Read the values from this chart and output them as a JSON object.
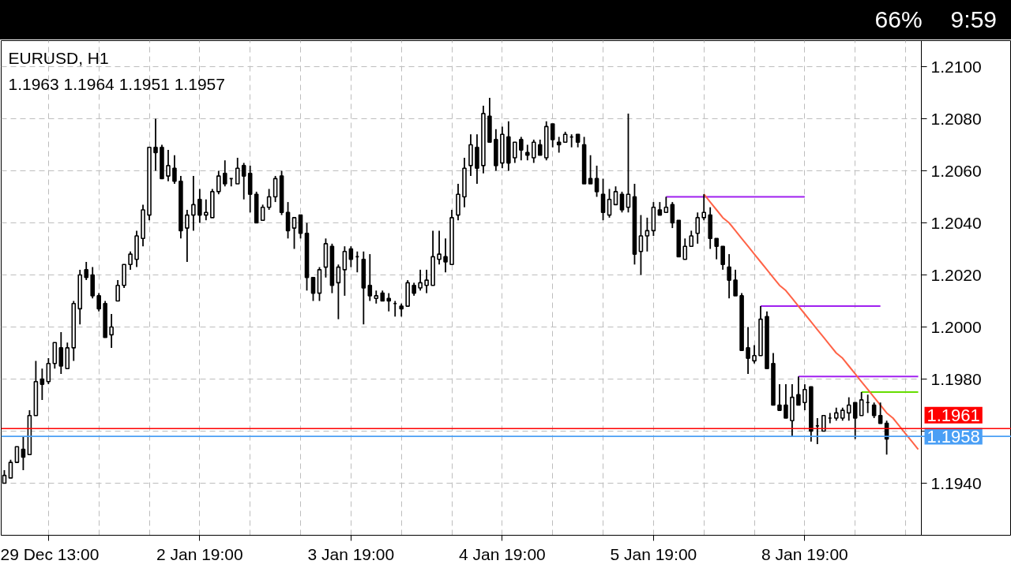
{
  "chart_data": {
    "type": "candlestick",
    "title": "EURUSD, H1",
    "subtitle": "1.1963 1.1964 1.1951 1.1957",
    "categories": [
      null,
      null,
      null,
      null,
      null,
      null,
      null,
      "29 Dec 13:00",
      null,
      null,
      null,
      null,
      null,
      null,
      null,
      null,
      null,
      null,
      null,
      null,
      null,
      null,
      null,
      null,
      null,
      null,
      null,
      null,
      null,
      null,
      null,
      "2 Jan 19:00",
      null,
      null,
      null,
      null,
      null,
      null,
      null,
      null,
      null,
      null,
      null,
      null,
      null,
      null,
      null,
      null,
      null,
      null,
      null,
      null,
      null,
      null,
      null,
      "3 Jan 19:00",
      null,
      null,
      null,
      null,
      null,
      null,
      null,
      null,
      null,
      null,
      null,
      null,
      null,
      null,
      null,
      null,
      null,
      null,
      null,
      null,
      null,
      null,
      null,
      "4 Jan 19:00",
      null,
      null,
      null,
      null,
      null,
      null,
      null,
      null,
      null,
      null,
      null,
      null,
      null,
      null,
      null,
      null,
      null,
      null,
      null,
      null,
      null,
      null,
      null,
      "5 Jan 19:00",
      null,
      null,
      null,
      null,
      null,
      null,
      null,
      null,
      null,
      null,
      null,
      null,
      null,
      null,
      null,
      null,
      null,
      null,
      null,
      null,
      null,
      null,
      null,
      "8 Jan 19:00",
      null,
      null,
      null,
      null,
      null,
      null,
      null,
      null,
      null,
      null,
      null,
      null,
      null,
      null,
      null,
      null,
      null,
      null
    ],
    "ohlc": [
      [
        1.194,
        1.1945,
        1.194,
        1.1943
      ],
      [
        1.1942,
        1.1949,
        1.1942,
        1.1948
      ],
      [
        1.1948,
        1.1954,
        1.1948,
        1.1954
      ],
      [
        1.1953,
        1.1958,
        1.1945,
        1.195
      ],
      [
        1.1951,
        1.1968,
        1.1951,
        1.1966
      ],
      [
        1.1966,
        1.1987,
        1.1966,
        1.1979
      ],
      [
        1.198,
        1.1984,
        1.1972,
        1.1978
      ],
      [
        1.1979,
        1.1988,
        1.1978,
        1.1986
      ],
      [
        1.1986,
        1.1994,
        1.1984,
        1.1994
      ],
      [
        1.1992,
        1.1998,
        1.1982,
        1.1985
      ],
      [
        1.1984,
        1.1994,
        1.1984,
        1.1992
      ],
      [
        1.1992,
        1.201,
        1.1987,
        1.2009
      ],
      [
        1.2007,
        1.2022,
        1.2001,
        1.202
      ],
      [
        1.2022,
        1.2025,
        1.2018,
        1.2019
      ],
      [
        1.202,
        1.2023,
        1.2011,
        1.2012
      ],
      [
        1.2012,
        1.2013,
        1.2006,
        1.2007
      ],
      [
        1.2009,
        1.201,
        1.1996,
        1.1996
      ],
      [
        1.1997,
        1.2005,
        1.1992,
        1.2
      ],
      [
        1.201,
        1.2018,
        1.201,
        1.2016
      ],
      [
        1.2016,
        1.2024,
        1.2015,
        1.2024
      ],
      [
        1.2024,
        1.2029,
        1.2022,
        1.2028
      ],
      [
        1.2026,
        1.2037,
        1.2023,
        1.2035
      ],
      [
        1.2034,
        1.2047,
        1.2031,
        1.2045
      ],
      [
        1.2043,
        1.2069,
        1.2041,
        1.2069
      ],
      [
        1.2069,
        1.208,
        1.206,
        1.2067
      ],
      [
        1.2069,
        1.207,
        1.2057,
        1.2057
      ],
      [
        1.2058,
        1.2068,
        1.2056,
        1.2062
      ],
      [
        1.2061,
        1.2066,
        1.2055,
        1.2056
      ],
      [
        1.2056,
        1.2058,
        1.2034,
        1.2037
      ],
      [
        1.2038,
        1.2045,
        1.2025,
        1.2043
      ],
      [
        1.2043,
        1.2058,
        1.2037,
        1.2047
      ],
      [
        1.2049,
        1.2053,
        1.204,
        1.2043
      ],
      [
        1.2043,
        1.2049,
        1.2041,
        1.2044
      ],
      [
        1.2042,
        1.2053,
        1.2042,
        1.2052
      ],
      [
        1.2052,
        1.206,
        1.2051,
        1.2058
      ],
      [
        1.2059,
        1.2064,
        1.2054,
        1.2055
      ],
      [
        1.2057,
        1.2057,
        1.2054,
        1.2057
      ],
      [
        1.2055,
        1.2065,
        1.2055,
        1.2061
      ],
      [
        1.2062,
        1.2063,
        1.2049,
        1.2058
      ],
      [
        1.2059,
        1.2062,
        1.2044,
        1.2051
      ],
      [
        1.2051,
        1.2052,
        1.204,
        1.204
      ],
      [
        1.2041,
        1.2047,
        1.2041,
        1.2046
      ],
      [
        1.2046,
        1.2053,
        1.2045,
        1.205
      ],
      [
        1.205,
        1.2058,
        1.2048,
        1.2057
      ],
      [
        1.2058,
        1.206,
        1.2043,
        1.2044
      ],
      [
        1.2044,
        1.2048,
        1.2034,
        1.2037
      ],
      [
        1.2038,
        1.2042,
        1.203,
        1.2042
      ],
      [
        1.2043,
        1.2043,
        1.2034,
        1.2036
      ],
      [
        1.2036,
        1.204,
        1.2014,
        1.2019
      ],
      [
        1.2019,
        1.2019,
        1.201,
        1.2013
      ],
      [
        1.2013,
        1.2023,
        1.201,
        1.2022
      ],
      [
        1.2023,
        1.2034,
        1.2019,
        1.2032
      ],
      [
        1.2031,
        1.2032,
        1.2013,
        1.2016
      ],
      [
        1.2017,
        1.2024,
        1.2003,
        1.2023
      ],
      [
        1.2022,
        1.2031,
        1.2012,
        1.2029
      ],
      [
        1.203,
        1.2031,
        1.2023,
        1.2026
      ],
      [
        1.2027,
        1.2029,
        1.2021,
        1.2027
      ],
      [
        1.2026,
        1.2029,
        1.2001,
        1.2015
      ],
      [
        1.2016,
        1.2028,
        1.201,
        1.2012
      ],
      [
        1.2011,
        1.2014,
        1.2009,
        1.2012
      ],
      [
        1.2013,
        1.2014,
        1.201,
        1.201
      ],
      [
        1.2011,
        1.2013,
        1.2006,
        1.201
      ],
      [
        1.2009,
        1.201,
        1.2004,
        1.2009
      ],
      [
        1.2008,
        1.2009,
        1.2004,
        1.2007
      ],
      [
        1.2008,
        1.2018,
        1.2008,
        1.2017
      ],
      [
        1.2016,
        1.2017,
        1.2012,
        1.2013
      ],
      [
        1.2015,
        1.2022,
        1.2014,
        1.2017
      ],
      [
        1.2016,
        1.2022,
        1.2013,
        1.2018
      ],
      [
        1.2016,
        1.2037,
        1.2016,
        1.2027
      ],
      [
        1.2026,
        1.2037,
        1.2024,
        1.2028
      ],
      [
        1.2027,
        1.2034,
        1.2021,
        1.2025
      ],
      [
        1.2024,
        1.2045,
        1.2024,
        1.2042
      ],
      [
        1.2043,
        1.2055,
        1.2041,
        1.2051
      ],
      [
        1.205,
        1.2065,
        1.2046,
        1.2061
      ],
      [
        1.2062,
        1.2074,
        1.2058,
        1.207
      ],
      [
        1.2069,
        1.2074,
        1.2055,
        1.2061
      ],
      [
        1.2062,
        1.2085,
        1.2059,
        1.2082
      ],
      [
        1.2081,
        1.2088,
        1.2071,
        1.2071
      ],
      [
        1.2072,
        1.2076,
        1.206,
        1.2062
      ],
      [
        1.2063,
        1.2077,
        1.2061,
        1.2074
      ],
      [
        1.2073,
        1.2079,
        1.206,
        1.2063
      ],
      [
        1.2065,
        1.2071,
        1.2063,
        1.2071
      ],
      [
        1.2072,
        1.2073,
        1.2064,
        1.2068
      ],
      [
        1.2067,
        1.207,
        1.2064,
        1.2066
      ],
      [
        1.2065,
        1.2072,
        1.2063,
        1.2071
      ],
      [
        1.207,
        1.2072,
        1.2066,
        1.2066
      ],
      [
        1.2065,
        1.2079,
        1.2064,
        1.2077
      ],
      [
        1.2078,
        1.2078,
        1.2069,
        1.2072
      ],
      [
        1.2071,
        1.2073,
        1.2067,
        1.207
      ],
      [
        1.2071,
        1.2075,
        1.2071,
        1.2074
      ],
      [
        1.2073,
        1.2074,
        1.2069,
        1.2073
      ],
      [
        1.2074,
        1.2074,
        1.2069,
        1.2071
      ],
      [
        1.207,
        1.2073,
        1.2055,
        1.2055
      ],
      [
        1.2057,
        1.2066,
        1.2055,
        1.2055
      ],
      [
        1.2057,
        1.2062,
        1.205,
        1.2052
      ],
      [
        1.2051,
        1.2057,
        1.2041,
        1.2044
      ],
      [
        1.2043,
        1.2053,
        1.2042,
        1.2049
      ],
      [
        1.2047,
        1.2054,
        1.2047,
        1.2052
      ],
      [
        1.2051,
        1.2052,
        1.2044,
        1.2045
      ],
      [
        1.2046,
        1.2082,
        1.2044,
        1.2051
      ],
      [
        1.205,
        1.2055,
        1.2024,
        1.2028
      ],
      [
        1.2029,
        1.2043,
        1.202,
        1.2035
      ],
      [
        1.2035,
        1.2042,
        1.2029,
        1.2037
      ],
      [
        1.2037,
        1.2048,
        1.2035,
        1.2046
      ],
      [
        1.2045,
        1.2048,
        1.2043,
        1.2043
      ],
      [
        1.2044,
        1.205,
        1.2044,
        1.2046
      ],
      [
        1.2047,
        1.2048,
        1.2038,
        1.204
      ],
      [
        1.2041,
        1.2041,
        1.2027,
        1.2027
      ],
      [
        1.2026,
        1.2034,
        1.2026,
        1.2031
      ],
      [
        1.2031,
        1.2037,
        1.2031,
        1.2035
      ],
      [
        1.2036,
        1.2044,
        1.2032,
        1.2042
      ],
      [
        1.2042,
        1.2051,
        1.2041,
        1.2044
      ],
      [
        1.2043,
        1.2046,
        1.203,
        1.2034
      ],
      [
        1.2034,
        1.2034,
        1.2026,
        1.2031
      ],
      [
        1.2031,
        1.2031,
        1.2022,
        1.2024
      ],
      [
        1.2023,
        1.2028,
        1.2011,
        1.2018
      ],
      [
        1.2018,
        1.2022,
        1.2012,
        1.2012
      ],
      [
        1.2012,
        1.2013,
        1.1991,
        1.1991
      ],
      [
        1.1992,
        1.2,
        1.1982,
        1.1988
      ],
      [
        1.1987,
        1.1993,
        1.1986,
        1.1989
      ],
      [
        1.1989,
        1.2008,
        1.1989,
        1.2003
      ],
      [
        1.2004,
        1.2006,
        1.1984,
        1.1984
      ],
      [
        1.1986,
        1.199,
        1.197,
        1.197
      ],
      [
        1.197,
        1.1978,
        1.1968,
        1.1968
      ],
      [
        1.197,
        1.1978,
        1.1965,
        1.1965
      ],
      [
        1.1964,
        1.1978,
        1.1958,
        1.1973
      ],
      [
        1.1974,
        1.1981,
        1.197,
        1.197
      ],
      [
        1.1971,
        1.1978,
        1.1968,
        1.1976
      ],
      [
        1.1977,
        1.1977,
        1.1956,
        1.196
      ],
      [
        1.1962,
        1.1965,
        1.1955,
        1.1962
      ],
      [
        1.196,
        1.1966,
        1.196,
        1.1966
      ],
      [
        1.1965,
        1.1967,
        1.1963,
        1.1965
      ],
      [
        1.1965,
        1.1969,
        1.1964,
        1.1967
      ],
      [
        1.1965,
        1.1969,
        1.1964,
        1.1968
      ],
      [
        1.1967,
        1.1973,
        1.1964,
        1.197
      ],
      [
        1.1971,
        1.1971,
        1.1957,
        1.1965
      ],
      [
        1.1966,
        1.1975,
        1.1966,
        1.1972
      ],
      [
        1.1971,
        1.1974,
        1.1967,
        1.1971
      ],
      [
        1.197,
        1.1971,
        1.1965,
        1.1966
      ],
      [
        1.1966,
        1.1971,
        1.1963,
        1.1963
      ],
      [
        1.1963,
        1.1964,
        1.1951,
        1.1957
      ],
      null,
      null,
      null,
      null,
      null
    ],
    "series": [
      {
        "type": "line",
        "color": "#a020f0",
        "values": [
          null,
          null,
          null,
          null,
          null,
          null,
          null,
          null,
          null,
          null,
          null,
          null,
          null,
          null,
          null,
          null,
          null,
          null,
          null,
          null,
          null,
          null,
          null,
          null,
          null,
          null,
          null,
          null,
          null,
          null,
          null,
          null,
          null,
          null,
          null,
          null,
          null,
          null,
          null,
          null,
          null,
          null,
          null,
          null,
          null,
          null,
          null,
          null,
          null,
          null,
          null,
          null,
          null,
          null,
          null,
          null,
          null,
          null,
          null,
          null,
          null,
          null,
          null,
          null,
          null,
          null,
          null,
          null,
          null,
          null,
          null,
          null,
          null,
          null,
          null,
          null,
          null,
          null,
          null,
          null,
          null,
          null,
          null,
          null,
          null,
          null,
          null,
          null,
          null,
          null,
          null,
          null,
          null,
          null,
          null,
          null,
          null,
          null,
          null,
          null,
          null,
          null,
          null,
          null,
          null,
          1.205,
          1.205,
          1.205,
          1.205,
          1.205,
          1.205,
          1.205,
          1.205,
          1.205,
          1.205,
          1.205,
          1.205,
          1.205,
          1.205,
          1.205,
          1.205,
          1.205,
          1.205,
          1.205,
          1.205,
          1.205,
          1.205,
          1.205,
          null,
          null,
          null,
          null,
          null,
          null,
          null,
          null,
          null,
          null,
          null,
          null,
          null,
          null,
          null,
          null,
          null,
          null
        ]
      },
      {
        "type": "line",
        "color": "#a020f0",
        "values": [
          null,
          null,
          null,
          null,
          null,
          null,
          null,
          null,
          null,
          null,
          null,
          null,
          null,
          null,
          null,
          null,
          null,
          null,
          null,
          null,
          null,
          null,
          null,
          null,
          null,
          null,
          null,
          null,
          null,
          null,
          null,
          null,
          null,
          null,
          null,
          null,
          null,
          null,
          null,
          null,
          null,
          null,
          null,
          null,
          null,
          null,
          null,
          null,
          null,
          null,
          null,
          null,
          null,
          null,
          null,
          null,
          null,
          null,
          null,
          null,
          null,
          null,
          null,
          null,
          null,
          null,
          null,
          null,
          null,
          null,
          null,
          null,
          null,
          null,
          null,
          null,
          null,
          null,
          null,
          null,
          null,
          null,
          null,
          null,
          null,
          null,
          null,
          null,
          null,
          null,
          null,
          null,
          null,
          null,
          null,
          null,
          null,
          null,
          null,
          null,
          null,
          null,
          null,
          null,
          null,
          null,
          null,
          null,
          null,
          null,
          null,
          null,
          null,
          null,
          null,
          null,
          null,
          null,
          null,
          null,
          1.2008,
          1.2008,
          1.2008,
          1.2008,
          1.2008,
          1.2008,
          1.2008,
          1.2008,
          1.2008,
          1.2008,
          1.2008,
          1.2008,
          1.2008,
          1.2008,
          1.2008,
          1.2008,
          1.2008,
          1.2008,
          1.2008,
          1.2008,
          null,
          null,
          null,
          null,
          null,
          null
        ]
      },
      {
        "type": "line",
        "color": "#a020f0",
        "values": [
          null,
          null,
          null,
          null,
          null,
          null,
          null,
          null,
          null,
          null,
          null,
          null,
          null,
          null,
          null,
          null,
          null,
          null,
          null,
          null,
          null,
          null,
          null,
          null,
          null,
          null,
          null,
          null,
          null,
          null,
          null,
          null,
          null,
          null,
          null,
          null,
          null,
          null,
          null,
          null,
          null,
          null,
          null,
          null,
          null,
          null,
          null,
          null,
          null,
          null,
          null,
          null,
          null,
          null,
          null,
          null,
          null,
          null,
          null,
          null,
          null,
          null,
          null,
          null,
          null,
          null,
          null,
          null,
          null,
          null,
          null,
          null,
          null,
          null,
          null,
          null,
          null,
          null,
          null,
          null,
          null,
          null,
          null,
          null,
          null,
          null,
          null,
          null,
          null,
          null,
          null,
          null,
          null,
          null,
          null,
          null,
          null,
          null,
          null,
          null,
          null,
          null,
          null,
          null,
          null,
          null,
          null,
          null,
          null,
          null,
          null,
          null,
          null,
          null,
          null,
          null,
          null,
          null,
          null,
          null,
          null,
          null,
          null,
          null,
          null,
          null,
          1.1981,
          1.1981,
          1.1981,
          1.1981,
          1.1981,
          1.1981,
          1.1981,
          1.1981,
          1.1981,
          1.1981,
          1.1981,
          1.1981,
          1.1981,
          1.1981,
          1.1981,
          1.1981,
          1.1981,
          1.1981,
          1.1981,
          1.1981
        ]
      },
      {
        "type": "line",
        "color": "#66dd00",
        "values": [
          null,
          null,
          null,
          null,
          null,
          null,
          null,
          null,
          null,
          null,
          null,
          null,
          null,
          null,
          null,
          null,
          null,
          null,
          null,
          null,
          null,
          null,
          null,
          null,
          null,
          null,
          null,
          null,
          null,
          null,
          null,
          null,
          null,
          null,
          null,
          null,
          null,
          null,
          null,
          null,
          null,
          null,
          null,
          null,
          null,
          null,
          null,
          null,
          null,
          null,
          null,
          null,
          null,
          null,
          null,
          null,
          null,
          null,
          null,
          null,
          null,
          null,
          null,
          null,
          null,
          null,
          null,
          null,
          null,
          null,
          null,
          null,
          null,
          null,
          null,
          null,
          null,
          null,
          null,
          null,
          null,
          null,
          null,
          null,
          null,
          null,
          null,
          null,
          null,
          null,
          null,
          null,
          null,
          null,
          null,
          null,
          null,
          null,
          null,
          null,
          null,
          null,
          null,
          null,
          null,
          null,
          null,
          null,
          null,
          null,
          null,
          null,
          null,
          null,
          null,
          null,
          null,
          null,
          null,
          null,
          null,
          null,
          null,
          null,
          null,
          null,
          null,
          null,
          null,
          null,
          null,
          null,
          null,
          null,
          null,
          null,
          1.1975,
          1.1975,
          1.1975,
          1.1975,
          1.1975,
          1.1975,
          1.1975,
          1.1975,
          1.1975,
          1.1975
        ]
      },
      {
        "type": "line",
        "color": "#ff6347",
        "values": [
          null,
          null,
          null,
          null,
          null,
          null,
          null,
          null,
          null,
          null,
          null,
          null,
          null,
          null,
          null,
          null,
          null,
          null,
          null,
          null,
          null,
          null,
          null,
          null,
          null,
          null,
          null,
          null,
          null,
          null,
          null,
          null,
          null,
          null,
          null,
          null,
          null,
          null,
          null,
          null,
          null,
          null,
          null,
          null,
          null,
          null,
          null,
          null,
          null,
          null,
          null,
          null,
          null,
          null,
          null,
          null,
          null,
          null,
          null,
          null,
          null,
          null,
          null,
          null,
          null,
          null,
          null,
          null,
          null,
          null,
          null,
          null,
          null,
          null,
          null,
          null,
          null,
          null,
          null,
          null,
          null,
          null,
          null,
          null,
          null,
          null,
          null,
          null,
          null,
          null,
          null,
          null,
          null,
          null,
          null,
          null,
          null,
          null,
          null,
          null,
          null,
          null,
          null,
          null,
          null,
          null,
          null,
          null,
          null,
          null,
          null,
          1.2051,
          1.2048,
          1.2045,
          1.2042,
          1.204,
          1.2037,
          1.2034,
          1.2031,
          1.2028,
          1.2025,
          1.2022,
          1.2019,
          1.2016,
          1.2014,
          1.2011,
          1.2008,
          1.2005,
          1.2002,
          1.1999,
          1.1996,
          1.1993,
          1.199,
          1.1988,
          1.1985,
          1.1982,
          1.1979,
          1.1976,
          1.1973,
          1.197,
          1.1967,
          1.1965,
          1.1962,
          1.1959,
          1.1956,
          1.1953
        ]
      }
    ],
    "ref_lines": [
      {
        "axis": "y",
        "value": 1.1961,
        "label": "1.1961",
        "color": "#ff0000"
      },
      {
        "axis": "y",
        "value": 1.1958,
        "label": "1.1958",
        "color": "#4a9ff5"
      }
    ],
    "ylim": [
      1.192,
      1.211
    ],
    "yticks": [
      {
        "value": 1.194,
        "label": "1.1940"
      },
      {
        "value": 1.196,
        "label": null
      },
      {
        "value": 1.198,
        "label": "1.1980"
      },
      {
        "value": 1.2,
        "label": "1.2000"
      },
      {
        "value": 1.202,
        "label": "1.2020"
      },
      {
        "value": 1.204,
        "label": "1.2040"
      },
      {
        "value": 1.206,
        "label": "1.2060"
      },
      {
        "value": 1.208,
        "label": "1.2080"
      },
      {
        "value": 1.21,
        "label": "1.2100"
      }
    ],
    "grid": true,
    "annotations": [
      "66%",
      "9:59"
    ]
  }
}
